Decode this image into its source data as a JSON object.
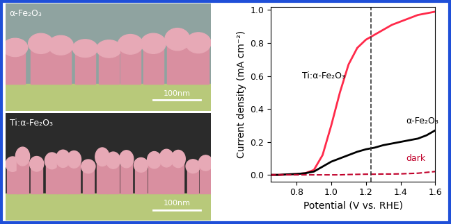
{
  "chart_data": {
    "type": "line",
    "x_label": "Potential (V vs. RHE)",
    "y_label": "Current density (mA cm⁻²)",
    "x": [
      0.65,
      0.7,
      0.75,
      0.8,
      0.85,
      0.9,
      0.95,
      1.0,
      1.05,
      1.1,
      1.15,
      1.2,
      1.25,
      1.3,
      1.35,
      1.4,
      1.45,
      1.5,
      1.55,
      1.6
    ],
    "series": [
      {
        "name": "Ti:α-Fe₂O₃",
        "color": "#ff2a4a",
        "line_style": "solid",
        "values": [
          0.0,
          0.0,
          0.003,
          0.005,
          0.01,
          0.03,
          0.12,
          0.3,
          0.5,
          0.67,
          0.77,
          0.82,
          0.85,
          0.88,
          0.91,
          0.93,
          0.95,
          0.97,
          0.98,
          0.99
        ]
      },
      {
        "name": "α-Fe₂O₃",
        "color": "#000000",
        "line_style": "solid",
        "values": [
          0.0,
          0.0,
          0.003,
          0.005,
          0.01,
          0.02,
          0.05,
          0.08,
          0.1,
          0.12,
          0.14,
          0.155,
          0.165,
          0.18,
          0.19,
          0.2,
          0.21,
          0.22,
          0.24,
          0.27
        ]
      },
      {
        "name": "dark",
        "color": "#c0002a",
        "line_style": "dashed",
        "values": [
          0.0,
          0.0,
          0.0,
          0.0,
          0.0,
          0.0,
          0.0,
          0.0,
          0.0,
          0.002,
          0.003,
          0.004,
          0.004,
          0.005,
          0.005,
          0.006,
          0.008,
          0.01,
          0.015,
          0.02
        ]
      }
    ],
    "reference_line_x": 1.23,
    "xlim": [
      0.65,
      1.6
    ],
    "xticks": [
      0.8,
      1.0,
      1.2,
      1.4,
      1.6
    ],
    "ylim": [
      -0.04,
      1.02
    ],
    "yticks": [
      0.0,
      0.2,
      0.4,
      0.6,
      0.8,
      1.0
    ],
    "grid": false
  },
  "micrographs": [
    {
      "label": "α-Fe₂O₃",
      "scale_bar": "100nm"
    },
    {
      "label": "Ti:α-Fe₂O₃",
      "scale_bar": "100nm"
    }
  ]
}
